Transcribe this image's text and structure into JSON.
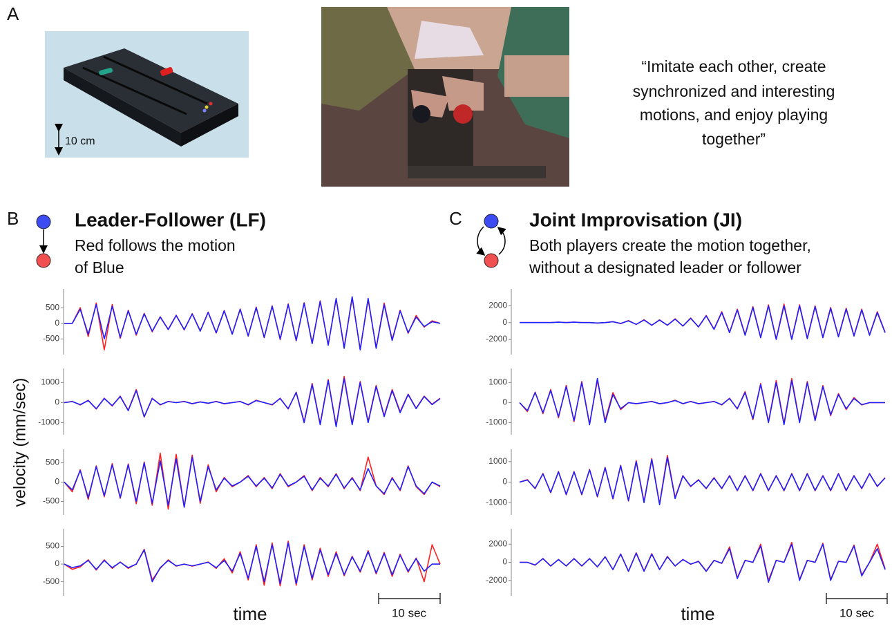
{
  "panel_labels": [
    "A",
    "B",
    "C"
  ],
  "scale_label": "10 cm",
  "quote_lines": [
    "“Imitate each other, create",
    "synchronized and interesting",
    "motions, and enjoy playing",
    "together”"
  ],
  "y_axis_label": "velocity (mm/sec)",
  "lf": {
    "title": "Leader-Follower (LF)",
    "subtitle_lines": [
      "Red follows the motion",
      "of Blue"
    ],
    "x_label": "time",
    "scale_bar": "10 sec"
  },
  "ji": {
    "title": "Joint Improvisation (JI)",
    "subtitle_lines": [
      "Both players create the motion together,",
      "without a designated leader or follower"
    ],
    "x_label": "time",
    "scale_bar": "10 sec"
  },
  "chart_data": [
    {
      "type": "line",
      "ylim": [
        -1000,
        1100
      ],
      "yticks": [
        500,
        0,
        -500
      ],
      "series": [
        {
          "color": "#ff2020",
          "values": [
            0,
            0,
            500,
            -420,
            650,
            -850,
            600,
            -480,
            420,
            -380,
            320,
            -270,
            210,
            -190,
            260,
            -210,
            310,
            -240,
            360,
            -310,
            410,
            -340,
            460,
            -410,
            520,
            -460,
            560,
            -520,
            620,
            -560,
            660,
            -630,
            720,
            -690,
            780,
            -760,
            820,
            -830,
            760,
            -780,
            650,
            -520,
            420,
            -320,
            250,
            -120,
            80,
            0
          ]
        },
        {
          "color": "#2020ff",
          "values": [
            0,
            0,
            450,
            -350,
            600,
            -500,
            550,
            -450,
            400,
            -350,
            300,
            -250,
            200,
            -200,
            250,
            -200,
            300,
            -250,
            350,
            -300,
            400,
            -350,
            450,
            -400,
            500,
            -450,
            550,
            -500,
            600,
            -550,
            650,
            -650,
            700,
            -700,
            800,
            -800,
            850,
            -850,
            800,
            -800,
            600,
            -550,
            400,
            -300,
            200,
            -100,
            50,
            0
          ]
        }
      ]
    },
    {
      "type": "line",
      "ylim": [
        -1600,
        1700
      ],
      "yticks": [
        1000,
        0,
        -1000
      ],
      "series": [
        {
          "color": "#ff2020",
          "values": [
            0,
            60,
            -120,
            120,
            -320,
            220,
            -170,
            320,
            -380,
            650,
            -720,
            220,
            -120,
            60,
            0,
            60,
            -60,
            40,
            -40,
            60,
            -60,
            0,
            60,
            -120,
            120,
            0,
            -120,
            220,
            -320,
            520,
            -950,
            950,
            -1050,
            1150,
            -1150,
            1300,
            -1050,
            1050,
            -950,
            850,
            -650,
            650,
            -450,
            420,
            -280,
            320,
            -80,
            220
          ]
        },
        {
          "color": "#2020ff",
          "values": [
            0,
            50,
            -100,
            100,
            -300,
            200,
            -150,
            300,
            -400,
            600,
            -700,
            200,
            -100,
            50,
            0,
            50,
            -50,
            30,
            -30,
            50,
            -50,
            0,
            50,
            -100,
            100,
            0,
            -100,
            200,
            -300,
            500,
            -1000,
            900,
            -1100,
            1100,
            -1200,
            1200,
            -1100,
            1000,
            -1000,
            800,
            -700,
            600,
            -500,
            400,
            -300,
            300,
            -100,
            200
          ]
        }
      ]
    },
    {
      "type": "line",
      "ylim": [
        -850,
        850
      ],
      "yticks": [
        500,
        0,
        -500
      ],
      "series": [
        {
          "color": "#ff2020",
          "values": [
            0,
            -250,
            320,
            -450,
            420,
            -380,
            480,
            -420,
            470,
            -560,
            520,
            -600,
            750,
            -700,
            720,
            -650,
            700,
            -550,
            450,
            -250,
            120,
            -120,
            0,
            170,
            -120,
            120,
            -170,
            220,
            -120,
            0,
            170,
            -220,
            120,
            -120,
            220,
            -170,
            120,
            -220,
            650,
            -100,
            -320,
            120,
            -220,
            420,
            -120,
            -320,
            0,
            -120
          ]
        },
        {
          "color": "#2020ff",
          "values": [
            0,
            -200,
            300,
            -400,
            400,
            -350,
            450,
            -400,
            450,
            -500,
            500,
            -550,
            550,
            -600,
            600,
            -650,
            650,
            -500,
            400,
            -200,
            100,
            -100,
            0,
            150,
            -100,
            100,
            -150,
            200,
            -100,
            0,
            150,
            -200,
            100,
            -100,
            200,
            -150,
            100,
            -200,
            350,
            -100,
            -300,
            100,
            -200,
            400,
            -100,
            -300,
            0,
            -100
          ]
        }
      ]
    },
    {
      "type": "line",
      "ylim": [
        -900,
        1000
      ],
      "yticks": [
        500,
        0,
        -500
      ],
      "series": [
        {
          "color": "#ff2020",
          "values": [
            0,
            -150,
            -80,
            120,
            -170,
            120,
            -120,
            60,
            -120,
            0,
            420,
            -450,
            -120,
            120,
            -60,
            0,
            -60,
            0,
            60,
            -120,
            150,
            -250,
            350,
            -450,
            550,
            -600,
            600,
            -620,
            650,
            -600,
            550,
            -450,
            450,
            -350,
            350,
            -330,
            220,
            -230,
            380,
            -280,
            330,
            -350,
            280,
            -230,
            170,
            -500,
            550,
            0
          ]
        },
        {
          "color": "#2020ff",
          "values": [
            0,
            -100,
            -50,
            100,
            -150,
            100,
            -100,
            50,
            -100,
            0,
            400,
            -500,
            -100,
            100,
            -50,
            0,
            -50,
            0,
            50,
            -100,
            100,
            -200,
            300,
            -400,
            500,
            -500,
            550,
            -550,
            600,
            -550,
            500,
            -400,
            400,
            -300,
            300,
            -300,
            200,
            -200,
            350,
            -250,
            300,
            -300,
            250,
            -200,
            150,
            -200,
            0,
            0
          ]
        }
      ]
    },
    {
      "type": "line",
      "ylim": [
        -3800,
        4000
      ],
      "yticks": [
        2000,
        0,
        -2000
      ],
      "series": [
        {
          "color": "#ff2020",
          "values": [
            0,
            0,
            0,
            0,
            0,
            60,
            0,
            60,
            0,
            0,
            -60,
            0,
            120,
            -120,
            250,
            -220,
            350,
            -320,
            330,
            -320,
            450,
            -420,
            550,
            -520,
            850,
            -780,
            1300,
            -1150,
            1600,
            -1450,
            1900,
            -1750,
            2100,
            -1950,
            2200,
            -1950,
            2100,
            -1850,
            2000,
            -1750,
            1800,
            -1650,
            1700,
            -1550,
            1600,
            -1450,
            1300,
            -1150
          ]
        },
        {
          "color": "#2020ff",
          "values": [
            0,
            0,
            0,
            0,
            0,
            50,
            0,
            50,
            0,
            0,
            -50,
            0,
            100,
            -100,
            200,
            -200,
            300,
            -300,
            300,
            -300,
            400,
            -400,
            500,
            -500,
            800,
            -800,
            1200,
            -1200,
            1500,
            -1500,
            1800,
            -1800,
            2000,
            -2000,
            2000,
            -2000,
            2000,
            -1900,
            1900,
            -1800,
            1700,
            -1700,
            1600,
            -1600,
            1500,
            -1500,
            1200,
            -1200
          ]
        }
      ]
    },
    {
      "type": "line",
      "ylim": [
        -1600,
        1700
      ],
      "yticks": [
        1000,
        0,
        -1000
      ],
      "series": [
        {
          "color": "#ff2020",
          "values": [
            0,
            -450,
            520,
            -550,
            650,
            -750,
            850,
            -950,
            1050,
            -1050,
            1100,
            -900,
            500,
            -350,
            0,
            -60,
            0,
            60,
            -60,
            0,
            120,
            -60,
            60,
            -60,
            0,
            60,
            -120,
            220,
            -320,
            550,
            -850,
            950,
            -950,
            1100,
            -1050,
            1200,
            -950,
            1050,
            -850,
            850,
            -650,
            450,
            -350,
            250,
            -120,
            0,
            0,
            0
          ]
        },
        {
          "color": "#2020ff",
          "values": [
            0,
            -400,
            500,
            -500,
            600,
            -700,
            800,
            -900,
            1000,
            -1100,
            1200,
            -1000,
            400,
            -300,
            0,
            -50,
            0,
            50,
            -50,
            0,
            100,
            -50,
            50,
            -50,
            0,
            50,
            -100,
            200,
            -300,
            500,
            -800,
            900,
            -1000,
            1000,
            -1100,
            1100,
            -1000,
            1000,
            -900,
            800,
            -600,
            400,
            -300,
            200,
            -100,
            0,
            0,
            0
          ]
        }
      ]
    },
    {
      "type": "line",
      "ylim": [
        -1600,
        1600
      ],
      "yticks": [
        1000,
        0,
        -1000
      ],
      "series": [
        {
          "color": "#ff2020",
          "values": [
            0,
            120,
            -320,
            420,
            -520,
            520,
            -620,
            520,
            -620,
            620,
            -720,
            720,
            -820,
            820,
            -920,
            1050,
            -950,
            1150,
            -1050,
            1300,
            -750,
            320,
            -220,
            120,
            -320,
            220,
            -320,
            320,
            -420,
            320,
            -420,
            420,
            -420,
            320,
            -420,
            420,
            -420,
            420,
            -420,
            320,
            -420,
            420,
            -420,
            320,
            -320,
            420,
            -220,
            220
          ]
        },
        {
          "color": "#2020ff",
          "values": [
            0,
            100,
            -300,
            400,
            -500,
            500,
            -600,
            500,
            -600,
            600,
            -700,
            700,
            -800,
            800,
            -900,
            1000,
            -1000,
            1100,
            -1100,
            1200,
            -800,
            300,
            -200,
            100,
            -300,
            200,
            -300,
            300,
            -400,
            300,
            -400,
            400,
            -400,
            300,
            -400,
            400,
            -400,
            400,
            -400,
            300,
            -400,
            400,
            -400,
            300,
            -300,
            400,
            -200,
            200
          ]
        }
      ]
    },
    {
      "type": "line",
      "ylim": [
        -3700,
        3700
      ],
      "yticks": [
        2000,
        0,
        -2000
      ],
      "series": [
        {
          "color": "#ff2020",
          "values": [
            0,
            0,
            -320,
            420,
            -420,
            320,
            -420,
            420,
            -420,
            420,
            -520,
            620,
            -820,
            920,
            -1000,
            1050,
            -950,
            950,
            -800,
            650,
            -420,
            320,
            -220,
            120,
            -950,
            220,
            -120,
            1700,
            -1700,
            220,
            0,
            2000,
            -2000,
            220,
            0,
            2200,
            -1900,
            220,
            0,
            2100,
            -1900,
            120,
            0,
            1900,
            -1400,
            0,
            2000,
            -700
          ]
        },
        {
          "color": "#2020ff",
          "values": [
            0,
            0,
            -300,
            400,
            -400,
            300,
            -400,
            400,
            -400,
            400,
            -500,
            600,
            -800,
            900,
            -1000,
            1000,
            -1000,
            900,
            -800,
            600,
            -400,
            300,
            -200,
            100,
            -1000,
            200,
            -100,
            1500,
            -1800,
            200,
            0,
            1800,
            -2200,
            200,
            0,
            2000,
            -2000,
            200,
            0,
            2000,
            -2000,
            100,
            0,
            1800,
            -1500,
            0,
            1500,
            -800
          ]
        }
      ]
    }
  ]
}
